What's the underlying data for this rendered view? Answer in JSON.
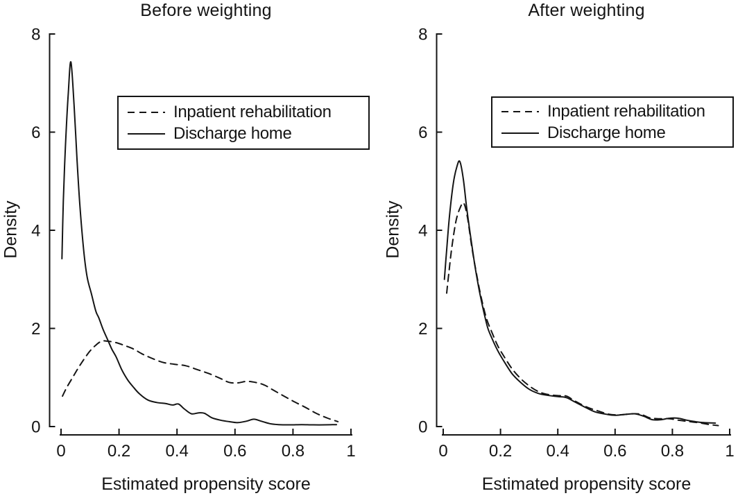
{
  "figure": {
    "background": "#ffffff",
    "ink_color": "#141414"
  },
  "chart_data": [
    {
      "type": "line",
      "panel": "before-weighting",
      "title": "Before weighting",
      "xlabel": "Estimated propensity score",
      "ylabel": "Density",
      "xlim": [
        0,
        1
      ],
      "ylim": [
        0,
        8
      ],
      "xticks": [
        0,
        0.2,
        0.4,
        0.6,
        0.8,
        1
      ],
      "xtick_labels": [
        "0",
        "0.2",
        "0.4",
        "0.6",
        "0.8",
        "1"
      ],
      "yticks": [
        0,
        2,
        4,
        6,
        8
      ],
      "ytick_labels": [
        "0",
        "2",
        "4",
        "6",
        "8"
      ],
      "grid": false,
      "legend_position": "inside-upper-right",
      "series": [
        {
          "name": "Inpatient rehabilitation",
          "style": "dashed",
          "points": [
            [
              0.005,
              0.62
            ],
            [
              0.02,
              0.8
            ],
            [
              0.04,
              1.0
            ],
            [
              0.06,
              1.2
            ],
            [
              0.08,
              1.38
            ],
            [
              0.1,
              1.54
            ],
            [
              0.12,
              1.66
            ],
            [
              0.14,
              1.74
            ],
            [
              0.16,
              1.74
            ],
            [
              0.19,
              1.71
            ],
            [
              0.22,
              1.65
            ],
            [
              0.25,
              1.58
            ],
            [
              0.28,
              1.48
            ],
            [
              0.31,
              1.4
            ],
            [
              0.35,
              1.31
            ],
            [
              0.39,
              1.27
            ],
            [
              0.43,
              1.24
            ],
            [
              0.47,
              1.16
            ],
            [
              0.51,
              1.08
            ],
            [
              0.55,
              0.98
            ],
            [
              0.58,
              0.9
            ],
            [
              0.61,
              0.89
            ],
            [
              0.64,
              0.92
            ],
            [
              0.67,
              0.9
            ],
            [
              0.7,
              0.85
            ],
            [
              0.73,
              0.75
            ],
            [
              0.76,
              0.65
            ],
            [
              0.8,
              0.52
            ],
            [
              0.84,
              0.4
            ],
            [
              0.88,
              0.27
            ],
            [
              0.92,
              0.17
            ],
            [
              0.955,
              0.1
            ]
          ]
        },
        {
          "name": "Discharge home",
          "style": "solid",
          "points": [
            [
              0.003,
              3.42
            ],
            [
              0.008,
              4.6
            ],
            [
              0.015,
              5.7
            ],
            [
              0.025,
              6.8
            ],
            [
              0.034,
              7.43
            ],
            [
              0.045,
              6.55
            ],
            [
              0.055,
              5.45
            ],
            [
              0.065,
              4.5
            ],
            [
              0.078,
              3.6
            ],
            [
              0.09,
              3.05
            ],
            [
              0.105,
              2.7
            ],
            [
              0.12,
              2.35
            ],
            [
              0.13,
              2.22
            ],
            [
              0.145,
              1.98
            ],
            [
              0.16,
              1.78
            ],
            [
              0.175,
              1.58
            ],
            [
              0.19,
              1.42
            ],
            [
              0.21,
              1.15
            ],
            [
              0.23,
              0.95
            ],
            [
              0.25,
              0.8
            ],
            [
              0.27,
              0.67
            ],
            [
              0.3,
              0.54
            ],
            [
              0.33,
              0.49
            ],
            [
              0.36,
              0.47
            ],
            [
              0.385,
              0.44
            ],
            [
              0.405,
              0.46
            ],
            [
              0.425,
              0.36
            ],
            [
              0.45,
              0.26
            ],
            [
              0.475,
              0.28
            ],
            [
              0.495,
              0.27
            ],
            [
              0.52,
              0.18
            ],
            [
              0.55,
              0.13
            ],
            [
              0.58,
              0.1
            ],
            [
              0.61,
              0.08
            ],
            [
              0.64,
              0.11
            ],
            [
              0.665,
              0.15
            ],
            [
              0.69,
              0.11
            ],
            [
              0.72,
              0.06
            ],
            [
              0.75,
              0.04
            ],
            [
              0.79,
              0.035
            ],
            [
              0.83,
              0.04
            ],
            [
              0.87,
              0.035
            ],
            [
              0.91,
              0.035
            ],
            [
              0.95,
              0.04
            ]
          ]
        }
      ]
    },
    {
      "type": "line",
      "panel": "after-weighting",
      "title": "After weighting",
      "xlabel": "Estimated propensity score",
      "ylabel": "Density",
      "xlim": [
        0,
        1
      ],
      "ylim": [
        0,
        8
      ],
      "xticks": [
        0,
        0.2,
        0.4,
        0.6,
        0.8,
        1
      ],
      "xtick_labels": [
        "0",
        "0.2",
        "0.4",
        "0.6",
        "0.8",
        "1"
      ],
      "yticks": [
        0,
        2,
        4,
        6,
        8
      ],
      "ytick_labels": [
        "0",
        "2",
        "4",
        "6",
        "8"
      ],
      "grid": false,
      "legend_position": "inside-upper-right",
      "series": [
        {
          "name": "Inpatient rehabilitation",
          "style": "dashed",
          "points": [
            [
              0.012,
              2.72
            ],
            [
              0.02,
              3.15
            ],
            [
              0.03,
              3.65
            ],
            [
              0.045,
              4.2
            ],
            [
              0.06,
              4.47
            ],
            [
              0.072,
              4.55
            ],
            [
              0.085,
              4.25
            ],
            [
              0.1,
              3.65
            ],
            [
              0.115,
              3.15
            ],
            [
              0.13,
              2.7
            ],
            [
              0.15,
              2.22
            ],
            [
              0.17,
              1.92
            ],
            [
              0.19,
              1.65
            ],
            [
              0.21,
              1.45
            ],
            [
              0.24,
              1.18
            ],
            [
              0.27,
              0.98
            ],
            [
              0.3,
              0.83
            ],
            [
              0.33,
              0.72
            ],
            [
              0.36,
              0.66
            ],
            [
              0.4,
              0.63
            ],
            [
              0.43,
              0.62
            ],
            [
              0.46,
              0.52
            ],
            [
              0.5,
              0.4
            ],
            [
              0.54,
              0.32
            ],
            [
              0.58,
              0.25
            ],
            [
              0.62,
              0.24
            ],
            [
              0.66,
              0.26
            ],
            [
              0.69,
              0.25
            ],
            [
              0.72,
              0.18
            ],
            [
              0.75,
              0.16
            ],
            [
              0.79,
              0.16
            ],
            [
              0.82,
              0.13
            ],
            [
              0.86,
              0.1
            ],
            [
              0.9,
              0.07
            ],
            [
              0.93,
              0.04
            ],
            [
              0.96,
              0.02
            ]
          ]
        },
        {
          "name": "Discharge home",
          "style": "solid",
          "points": [
            [
              0.004,
              3.0
            ],
            [
              0.012,
              3.6
            ],
            [
              0.022,
              4.3
            ],
            [
              0.035,
              4.95
            ],
            [
              0.048,
              5.3
            ],
            [
              0.058,
              5.4
            ],
            [
              0.07,
              5.05
            ],
            [
              0.082,
              4.45
            ],
            [
              0.095,
              3.9
            ],
            [
              0.11,
              3.3
            ],
            [
              0.125,
              2.8
            ],
            [
              0.14,
              2.38
            ],
            [
              0.155,
              2.02
            ],
            [
              0.17,
              1.8
            ],
            [
              0.19,
              1.55
            ],
            [
              0.21,
              1.35
            ],
            [
              0.24,
              1.08
            ],
            [
              0.27,
              0.9
            ],
            [
              0.3,
              0.76
            ],
            [
              0.33,
              0.68
            ],
            [
              0.36,
              0.64
            ],
            [
              0.4,
              0.61
            ],
            [
              0.43,
              0.59
            ],
            [
              0.46,
              0.5
            ],
            [
              0.5,
              0.38
            ],
            [
              0.53,
              0.3
            ],
            [
              0.57,
              0.25
            ],
            [
              0.6,
              0.23
            ],
            [
              0.64,
              0.25
            ],
            [
              0.67,
              0.26
            ],
            [
              0.7,
              0.21
            ],
            [
              0.73,
              0.14
            ],
            [
              0.76,
              0.14
            ],
            [
              0.79,
              0.17
            ],
            [
              0.82,
              0.17
            ],
            [
              0.85,
              0.13
            ],
            [
              0.88,
              0.1
            ],
            [
              0.91,
              0.08
            ],
            [
              0.95,
              0.07
            ]
          ]
        }
      ]
    }
  ]
}
